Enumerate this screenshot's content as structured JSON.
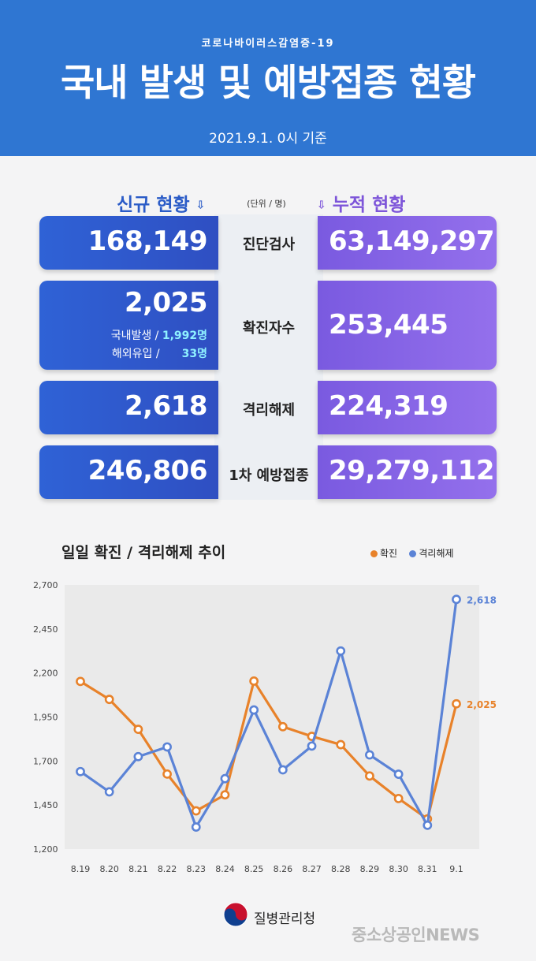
{
  "header": {
    "subtitle": "코로나바이러스감염증-19",
    "title": "국내 발생 및 예방접종 현황",
    "date": "2021.9.1. 0시 기준"
  },
  "sections": {
    "new_label": "신규 현황",
    "unit": "(단위 / 명)",
    "cum_label": "누적 현황"
  },
  "rows": [
    {
      "label": "진단검사",
      "new": "168,149",
      "cum": "63,149,297"
    },
    {
      "label": "확진자수",
      "new": "2,025",
      "cum": "253,445",
      "breakdown": [
        {
          "label": "국내발생 /",
          "value": "1,992명"
        },
        {
          "label": "해외유입 /",
          "value": "33명"
        }
      ]
    },
    {
      "label": "격리해제",
      "new": "2,618",
      "cum": "224,319"
    },
    {
      "label": "1차 예방접종",
      "new": "246,806",
      "cum": "29,279,112"
    }
  ],
  "colors": {
    "header": "#2f76d2",
    "new_card": "#2f58cc",
    "cum_card": "#8464e6",
    "confirmed": "#e8822a",
    "released": "#5b83d6"
  },
  "chart_data": {
    "type": "line",
    "title": "일일 확진 / 격리해제 추이",
    "categories": [
      "8.19",
      "8.20",
      "8.21",
      "8.22",
      "8.23",
      "8.24",
      "8.25",
      "8.26",
      "8.27",
      "8.28",
      "8.29",
      "8.30",
      "8.31",
      "9.1"
    ],
    "series": [
      {
        "name": "확진",
        "color": "#e8822a",
        "values": [
          2152,
          2050,
          1880,
          1626,
          1417,
          1508,
          2154,
          1895,
          1840,
          1793,
          1615,
          1487,
          1371,
          2025
        ],
        "end_label": "2,025"
      },
      {
        "name": "격리해제",
        "color": "#5b83d6",
        "values": [
          1640,
          1525,
          1725,
          1780,
          1325,
          1600,
          1990,
          1650,
          1785,
          2325,
          1735,
          1625,
          1335,
          2618
        ],
        "end_label": "2,618"
      }
    ],
    "ylim": [
      1200,
      2700
    ],
    "yticks": [
      "1,200",
      "1,450",
      "1,700",
      "1,950",
      "2,200",
      "2,450",
      "2,700"
    ],
    "grid": false,
    "legend": "top-right"
  },
  "footer": {
    "org": "질병관리청",
    "watermark": "중소상공인NEWS"
  }
}
